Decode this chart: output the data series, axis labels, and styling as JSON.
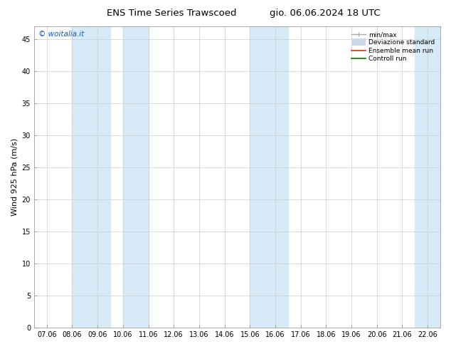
{
  "title_left": "ENS Time Series Trawscoed",
  "title_right": "gio. 06.06.2024 18 UTC",
  "ylabel": "Wind 925 hPa (m/s)",
  "watermark": "© woitalia.it",
  "ylim": [
    0,
    47
  ],
  "yticks": [
    0,
    5,
    10,
    15,
    20,
    25,
    30,
    35,
    40,
    45
  ],
  "xtick_labels": [
    "07.06",
    "08.06",
    "09.06",
    "10.06",
    "11.06",
    "12.06",
    "13.06",
    "14.06",
    "15.06",
    "16.06",
    "17.06",
    "18.06",
    "19.06",
    "20.06",
    "21.06",
    "22.06"
  ],
  "blue_band_ranges": [
    [
      1.0,
      2.5
    ],
    [
      3.0,
      4.0
    ],
    [
      8.0,
      9.5
    ],
    [
      14.5,
      15.5
    ]
  ],
  "bg_color": "#ffffff",
  "band_color": "#d6eaf8",
  "grid_color": "#cccccc",
  "tick_fontsize": 7,
  "label_fontsize": 8,
  "title_fontsize": 9.5,
  "legend_labels": [
    "min/max",
    "Deviazione standard",
    "Ensemble mean run",
    "Controll run"
  ],
  "legend_colors": [
    "#aaaaaa",
    "#bbbbbb",
    "#ff2200",
    "#007700"
  ]
}
